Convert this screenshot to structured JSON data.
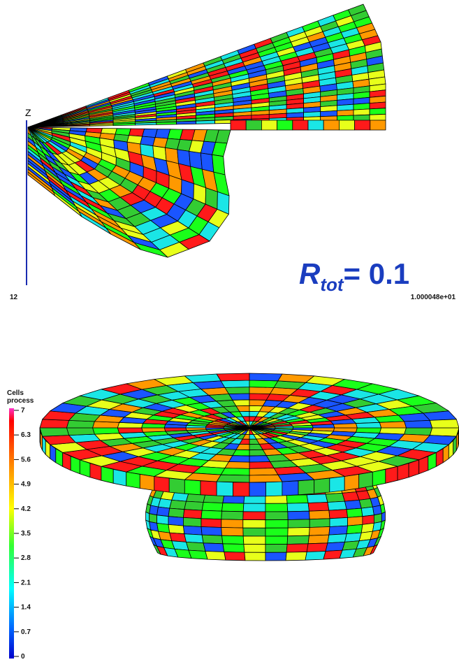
{
  "top_panel": {
    "axis_label": "Z",
    "corner_label": "12",
    "rtot": {
      "symbol": "R",
      "subscript": "tot",
      "value": "= 0.1"
    },
    "time_label": "1.000048e+01"
  },
  "bottom_panel": {
    "legend": {
      "title": [
        "Cells",
        "process"
      ],
      "ticks": [
        7,
        6.3,
        5.6,
        4.9,
        4.2,
        3.5,
        2.8,
        2.1,
        1.4,
        0.7,
        0
      ]
    }
  }
}
